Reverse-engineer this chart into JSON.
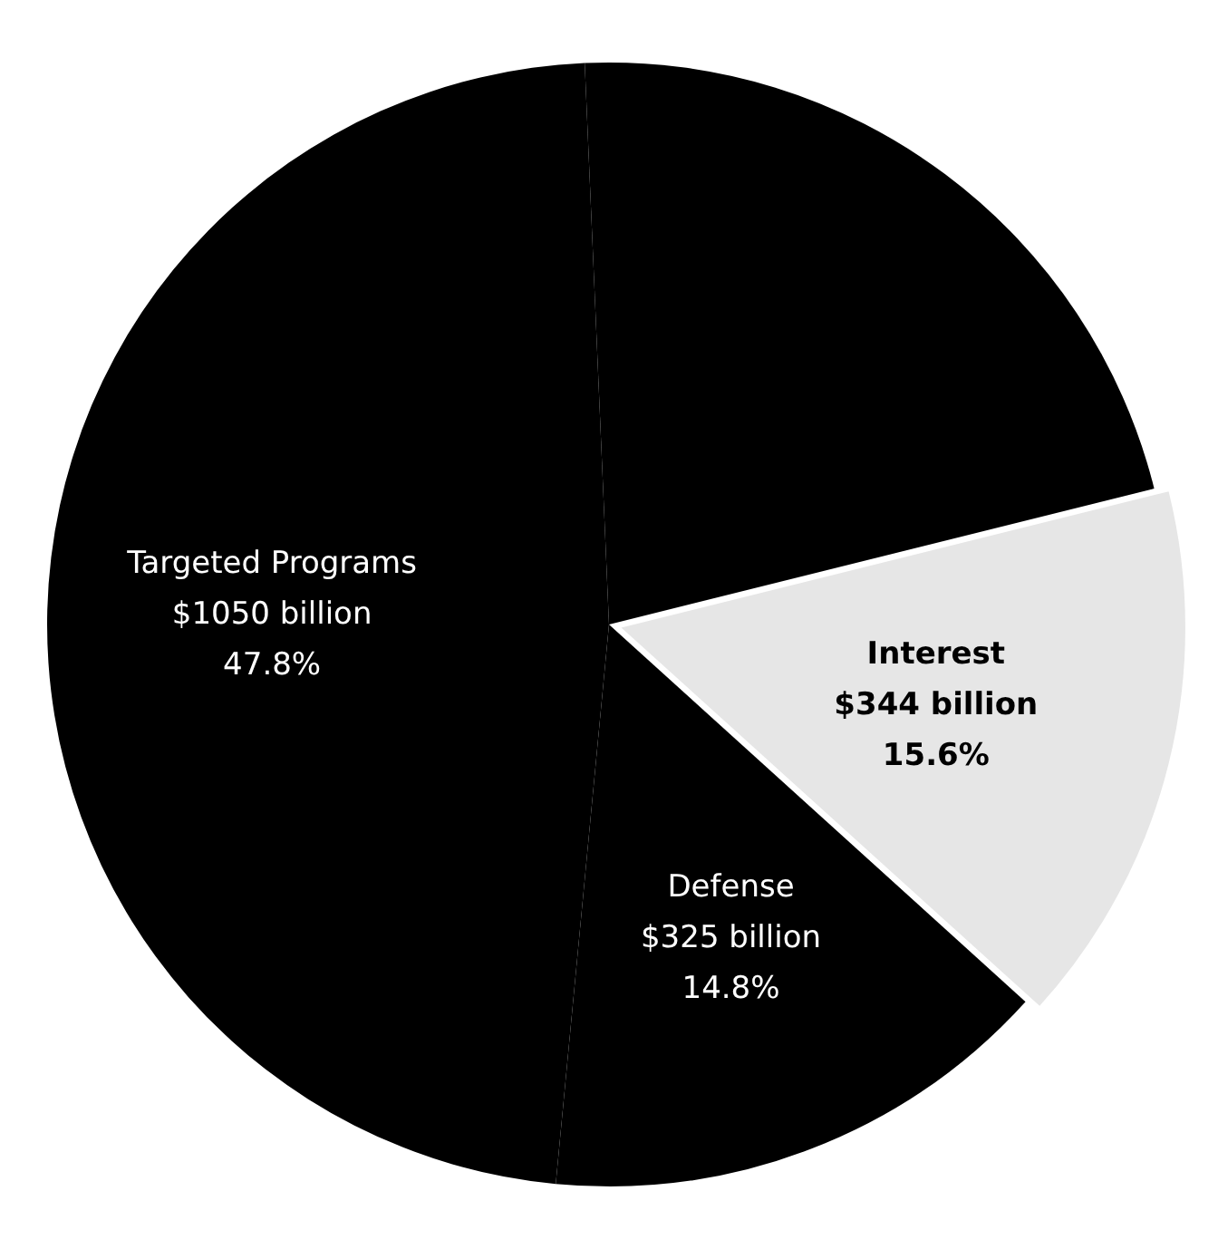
{
  "chart_data": {
    "type": "pie",
    "categories": [
      "Interest",
      "Defense",
      "Targeted Programs",
      null
    ],
    "values": [
      15.6,
      14.8,
      47.8,
      21.8
    ],
    "colors": [
      "#e6e6e6",
      "#000000",
      "#000000",
      "#000000"
    ],
    "value_labels": [
      "$344 billion\n15.6%",
      "$325 billion\n14.8%",
      "$1050 billion\n47.8%",
      null
    ],
    "legend": false
  }
}
